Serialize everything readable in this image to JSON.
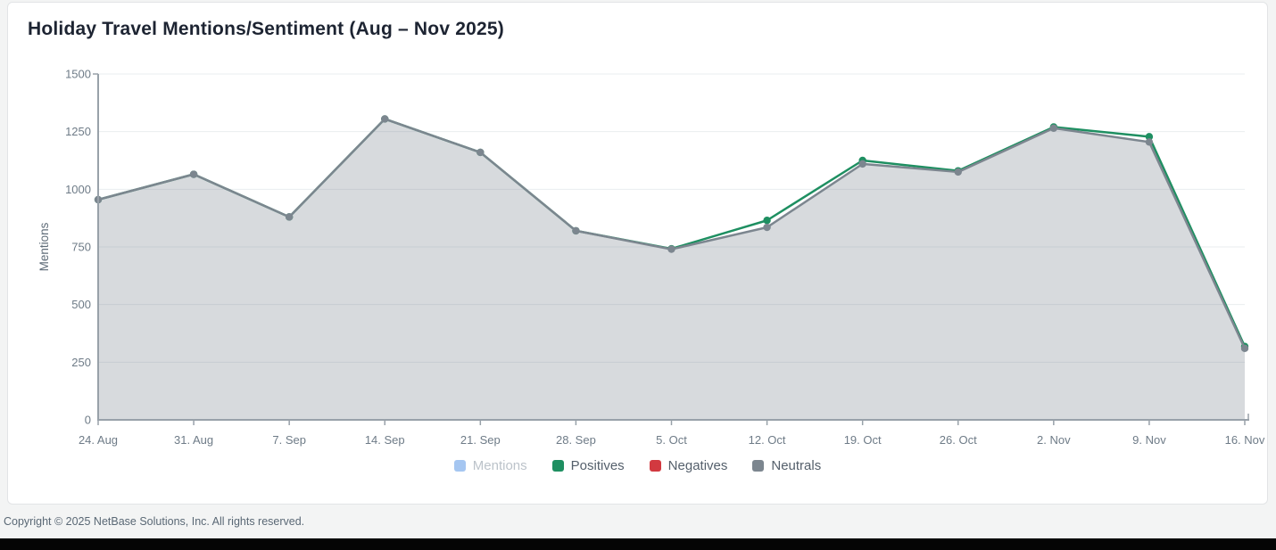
{
  "chart": {
    "title": "Holiday Travel Mentions/Sentiment (Aug – Nov 2025)"
  },
  "chart_data": {
    "type": "area",
    "title": "Holiday Travel Mentions/Sentiment (Aug – Nov 2025)",
    "xlabel": "",
    "ylabel": "Mentions",
    "ylim": [
      0,
      1500
    ],
    "yticks": [
      0,
      250,
      500,
      750,
      1000,
      1250,
      1500
    ],
    "grid": true,
    "legend_position": "bottom-center",
    "categories": [
      "24. Aug",
      "31. Aug",
      "7. Sep",
      "14. Sep",
      "21. Sep",
      "28. Sep",
      "5. Oct",
      "12. Oct",
      "19. Oct",
      "26. Oct",
      "2. Nov",
      "9. Nov",
      "16. Nov"
    ],
    "series": [
      {
        "name": "Mentions",
        "color": "#a5c6f1",
        "visible": false,
        "legend_dimmed": true
      },
      {
        "name": "Positives",
        "color": "#1e8f61",
        "visible": true,
        "style": "line",
        "values": [
          955,
          1065,
          880,
          1305,
          1160,
          820,
          742,
          865,
          1125,
          1080,
          1270,
          1228,
          318
        ]
      },
      {
        "name": "Negatives",
        "color": "#d23940",
        "visible": false
      },
      {
        "name": "Neutrals",
        "color": "#7c868f",
        "visible": true,
        "style": "area",
        "fill": "rgba(124,134,143,0.30)",
        "values": [
          955,
          1065,
          880,
          1305,
          1160,
          820,
          740,
          835,
          1110,
          1075,
          1265,
          1205,
          310
        ]
      }
    ]
  },
  "colors": {
    "grid": "#e9edef",
    "axis": "#98a1a9",
    "tick_label": "#6e7b87",
    "title": "#1d2432",
    "black_bar": "#050505"
  },
  "footer": {
    "copyright": "Copyright © 2025 NetBase Solutions, Inc. All rights reserved."
  }
}
